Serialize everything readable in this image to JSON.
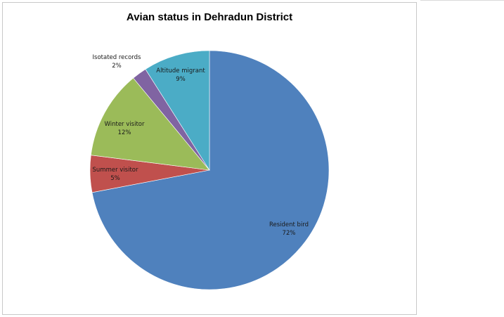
{
  "chart_data": {
    "type": "pie",
    "title": "Avian status in Dehradun District",
    "slices": [
      {
        "name": "Resident bird",
        "value": 72,
        "label": "72%",
        "color": "#4f81bd"
      },
      {
        "name": "Summer visitor",
        "value": 5,
        "label": "5%",
        "color": "#c0504d"
      },
      {
        "name": "Winter visitor",
        "value": 12,
        "label": "12%",
        "color": "#9bbb59"
      },
      {
        "name": "Isotated records",
        "value": 2,
        "label": "2%",
        "color": "#8064a2"
      },
      {
        "name": "Altitude migrant",
        "value": 9,
        "label": "9%",
        "color": "#4bacc6"
      }
    ],
    "start_angle_deg": 0,
    "direction": "clockwise",
    "legend": "none"
  }
}
